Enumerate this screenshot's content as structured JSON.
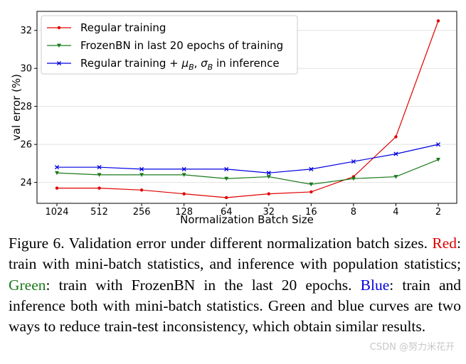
{
  "chart_data": {
    "type": "line",
    "title": "",
    "xlabel": "Normalization Batch Size",
    "ylabel": "val error (%)",
    "categories": [
      "1024",
      "512",
      "256",
      "128",
      "64",
      "32",
      "16",
      "8",
      "4",
      "2"
    ],
    "ylim": [
      22.9,
      33.0
    ],
    "yticks": [
      24,
      26,
      28,
      30,
      32
    ],
    "grid": "horizontal",
    "legend_position": "top-left",
    "series": [
      {
        "name": "Regular training",
        "color": "#e00000",
        "marker": "dot",
        "values": [
          23.7,
          23.7,
          23.6,
          23.4,
          23.2,
          23.4,
          23.5,
          24.3,
          26.4,
          32.5
        ]
      },
      {
        "name": "FrozenBN in last 20 epochs of training",
        "color": "#1a7a1a",
        "marker": "triangle-down",
        "values": [
          24.5,
          24.4,
          24.4,
          24.4,
          24.2,
          24.3,
          23.9,
          24.2,
          24.3,
          25.2
        ]
      },
      {
        "name": "Regular training + μB, σB in inference",
        "legend_prefix": "Regular training + ",
        "legend_mu": "μ",
        "legend_sigma": "σ",
        "legend_sub": "B",
        "legend_suffix": " in inference",
        "color": "#0000e0",
        "marker": "x",
        "values": [
          24.8,
          24.8,
          24.7,
          24.7,
          24.7,
          24.5,
          24.7,
          25.1,
          25.5,
          26.0
        ]
      }
    ]
  },
  "caption": {
    "lead": "Figure 6. Validation error under different normalization batch sizes.",
    "red_word": "Red",
    "red_text": ": train with mini-batch statistics, and inference with population statistics;",
    "green_word": "Green",
    "green_text": ": train with FrozenBN in the last 20 epochs.",
    "blue_word": "Blue",
    "blue_text": ": train and inference both with mini-batch statistics. Green and blue curves are two ways to reduce train-test inconsistency, which obtain similar results."
  },
  "watermark": "CSDN @努力米花开"
}
